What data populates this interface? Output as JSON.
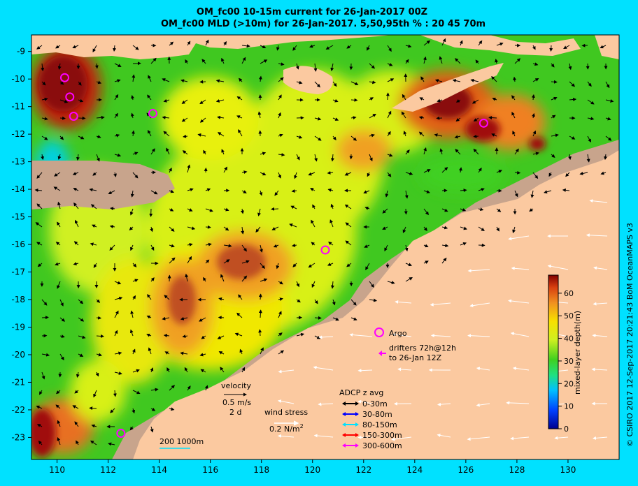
{
  "title_line1": "OM_fc00 10-15m current for 26-Jan-2017 00Z",
  "title_line2": "OM_fc00 MLD (>10m) for 26-Jan-2017. 5,50,95th % : 20  45  70m",
  "credit": "© CSIRO 2017   12-Sep-2017 20:21:43 BoM OceanMAPS v3",
  "axes": {
    "lon_ticks": [
      110,
      112,
      114,
      116,
      118,
      120,
      122,
      124,
      126,
      128,
      130
    ],
    "lat_ticks": [
      -9,
      -10,
      -11,
      -12,
      -13,
      -14,
      -15,
      -16,
      -17,
      -18,
      -19,
      -20,
      -21,
      -22,
      -23
    ],
    "lon_range": [
      109,
      132
    ],
    "lat_range": [
      -23.8,
      -8.4
    ]
  },
  "colorbar": {
    "label": "mixed-layer depth(m)",
    "ticks": [
      0,
      10,
      20,
      30,
      40,
      50,
      60
    ],
    "range": [
      0,
      68
    ]
  },
  "legend": {
    "argo_label": "Argo",
    "drifters_line1": "drifters 72h@12h",
    "drifters_line2": "to 26-Jan 12Z",
    "velocity_label": "velocity",
    "velocity_value": "0.5 m/s",
    "velocity_time": "2 d",
    "wind_label": "wind stress",
    "wind_value": "0.2 N/m",
    "wind_exp": "2",
    "adcp_title": "ADCP z avg",
    "adcp_items": [
      {
        "label": "0-30m",
        "color": "#000000"
      },
      {
        "label": "30-80m",
        "color": "#0000ff"
      },
      {
        "label": "80-150m",
        "color": "#00e1ff"
      },
      {
        "label": "150-300m",
        "color": "#ff0000"
      },
      {
        "label": "300-600m",
        "color": "#ff00ff"
      }
    ],
    "bathy_label": "200  1000m"
  },
  "argo_floats": [
    {
      "lon": 110.3,
      "lat": -9.95
    },
    {
      "lon": 110.5,
      "lat": -10.65
    },
    {
      "lon": 110.65,
      "lat": -11.35
    },
    {
      "lon": 113.75,
      "lat": -11.25
    },
    {
      "lon": 120.5,
      "lat": -16.2
    },
    {
      "lon": 112.5,
      "lat": -22.85
    },
    {
      "lon": 126.7,
      "lat": -11.6
    }
  ],
  "colors": {
    "frame": "#00e1ff",
    "land": "#fbc9a0",
    "shelf": "#c8a48c",
    "argo": "#ff00ff"
  }
}
